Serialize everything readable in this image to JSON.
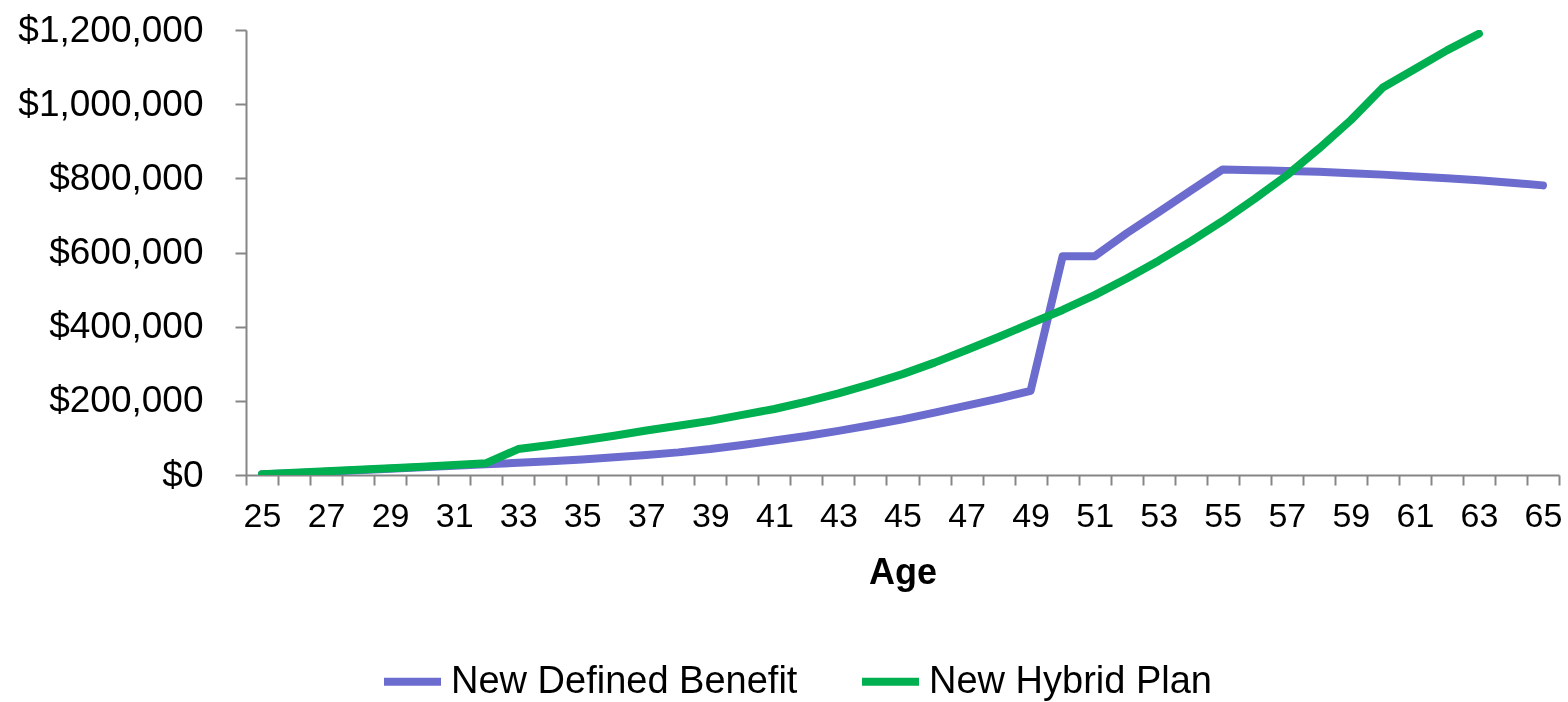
{
  "chart_data": {
    "type": "line",
    "xlabel": "Age",
    "categories": [
      "25",
      null,
      "27",
      null,
      "29",
      null,
      "31",
      null,
      "33",
      null,
      "35",
      null,
      "37",
      null,
      "39",
      null,
      "41",
      null,
      "43",
      null,
      "45",
      null,
      "47",
      null,
      "49",
      null,
      "51",
      null,
      "53",
      null,
      "55",
      null,
      "57",
      null,
      "59",
      null,
      "61",
      null,
      "63",
      null,
      "65"
    ],
    "series": [
      {
        "name": "New Defined Benefit",
        "color": "#6c6ccf",
        "values": [
          2000,
          5000,
          9000,
          13000,
          17000,
          21000,
          25000,
          29000,
          33000,
          37000,
          42000,
          48000,
          54000,
          61000,
          70000,
          81000,
          93000,
          105000,
          119000,
          134000,
          150000,
          168000,
          187000,
          206000,
          227000,
          590000,
          590000,
          652000,
          709000,
          767000,
          824000,
          822000,
          820000,
          818000,
          814000,
          810000,
          805000,
          800000,
          795000,
          788000,
          781000
        ]
      },
      {
        "name": "New Hybrid Plan",
        "color": "#00b050",
        "values": [
          2000,
          6000,
          10000,
          14000,
          18000,
          22000,
          27000,
          32000,
          70000,
          81000,
          93000,
          106000,
          120000,
          133000,
          146000,
          162000,
          178000,
          198000,
          220000,
          245000,
          272000,
          303000,
          337000,
          372000,
          409000,
          445000,
          485000,
          530000,
          578000,
          630000,
          685000,
          745000,
          808000,
          880000,
          957000,
          1045000,
          1095000,
          1145000,
          1190000,
          null,
          null
        ]
      }
    ],
    "ylim": [
      0,
      1200000
    ],
    "yticks": [
      {
        "value": 0,
        "label": "$0"
      },
      {
        "value": 200000,
        "label": "$200,000"
      },
      {
        "value": 400000,
        "label": "$400,000"
      },
      {
        "value": 600000,
        "label": "$600,000"
      },
      {
        "value": 800000,
        "label": "$800,000"
      },
      {
        "value": 1000000,
        "label": "$1,000,000"
      },
      {
        "value": 1200000,
        "label": "$1,200,000"
      }
    ],
    "legend": "bottom"
  }
}
